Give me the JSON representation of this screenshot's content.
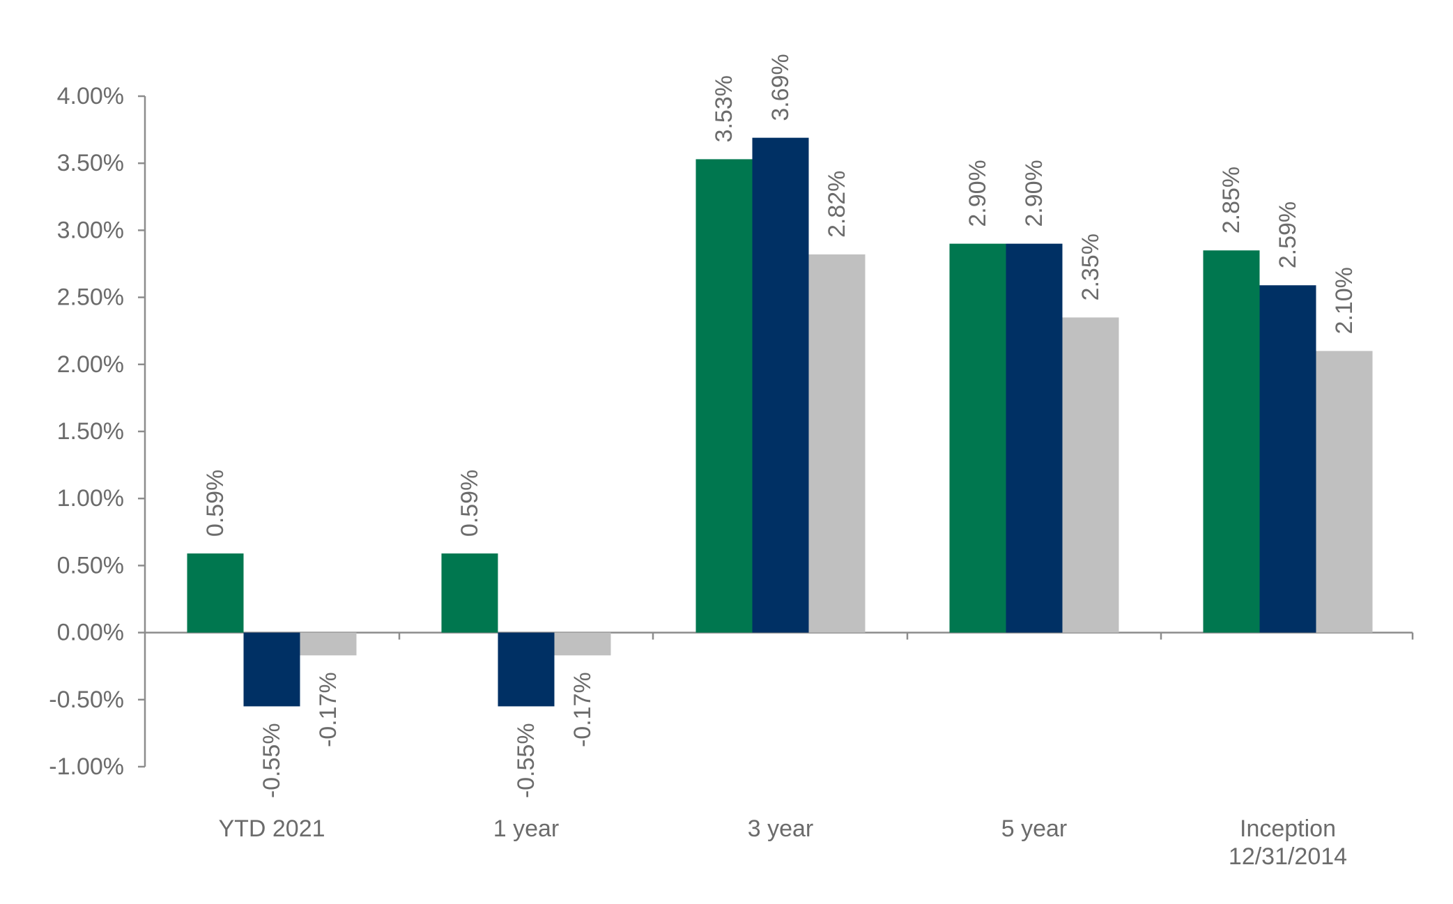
{
  "chart_data": {
    "type": "bar",
    "title": "",
    "xlabel": "",
    "ylabel": "",
    "categories": [
      "YTD 2021",
      "1 year",
      "3 year",
      "5 year",
      "Inception\n12/31/2014"
    ],
    "series": [
      {
        "color": "#00774f",
        "values": [
          0.59,
          0.59,
          3.53,
          2.9,
          2.85
        ]
      },
      {
        "color": "#003064",
        "values": [
          -0.55,
          -0.55,
          3.69,
          2.9,
          2.59
        ]
      },
      {
        "color": "#c0c0c0",
        "values": [
          -0.17,
          -0.17,
          2.82,
          2.35,
          2.1
        ]
      }
    ],
    "data_labels": [
      [
        "0.59%",
        "0.59%",
        "3.53%",
        "2.90%",
        "2.85%"
      ],
      [
        "-0.55%",
        "-0.55%",
        "3.69%",
        "2.90%",
        "2.59%"
      ],
      [
        "-0.17%",
        "-0.17%",
        "2.82%",
        "2.35%",
        "2.10%"
      ]
    ],
    "y_ticks": [
      4.0,
      3.5,
      3.0,
      2.5,
      2.0,
      1.5,
      1.0,
      0.5,
      0.0,
      -0.5,
      -1.0
    ],
    "y_tick_labels": [
      "4.00%",
      "3.50%",
      "3.00%",
      "2.50%",
      "2.00%",
      "1.50%",
      "1.00%",
      "0.50%",
      "0.00%",
      "-0.50%",
      "-1.00%"
    ],
    "ylim": [
      -1.0,
      4.0
    ],
    "grid": false,
    "legend": "none",
    "data_label_orientation": "vertical"
  }
}
